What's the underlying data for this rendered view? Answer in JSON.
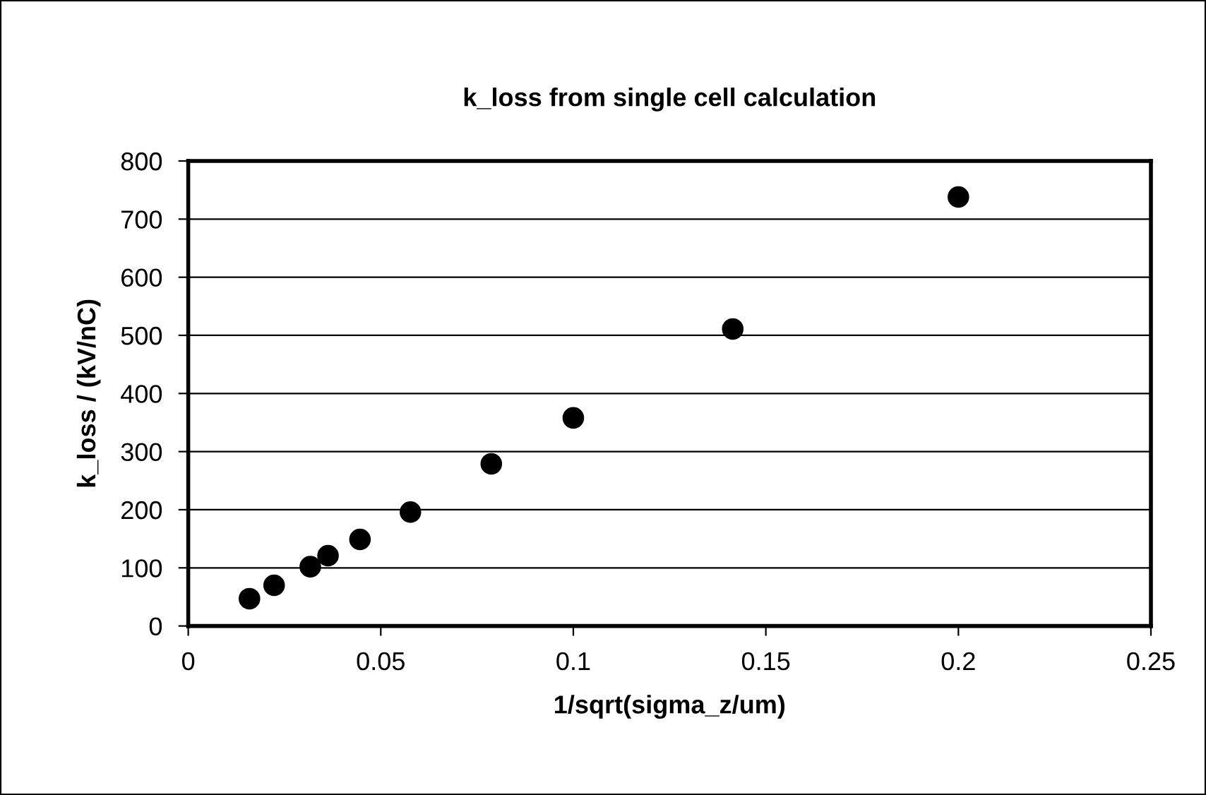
{
  "chart_data": {
    "type": "scatter",
    "title": "k_loss from single cell calculation",
    "xlabel": "1/sqrt(sigma_z/um)",
    "ylabel": "k_loss / (kV/nC)",
    "x": [
      0.0159,
      0.0223,
      0.0317,
      0.0363,
      0.0446,
      0.0577,
      0.0787,
      0.1,
      0.1414,
      0.2
    ],
    "series": [
      {
        "color": "#000000",
        "values": [
          47,
          70,
          102,
          121,
          149,
          196,
          279,
          358,
          511,
          738
        ]
      }
    ],
    "xlim": [
      0,
      0.25
    ],
    "xticks": [
      0,
      0.05,
      0.1,
      0.15,
      0.2,
      0.25
    ],
    "ylim": [
      0,
      800
    ],
    "yticks": [
      0,
      100,
      200,
      300,
      400,
      500,
      600,
      700,
      800
    ],
    "grid": "y",
    "marker": "circle",
    "legend": false
  }
}
